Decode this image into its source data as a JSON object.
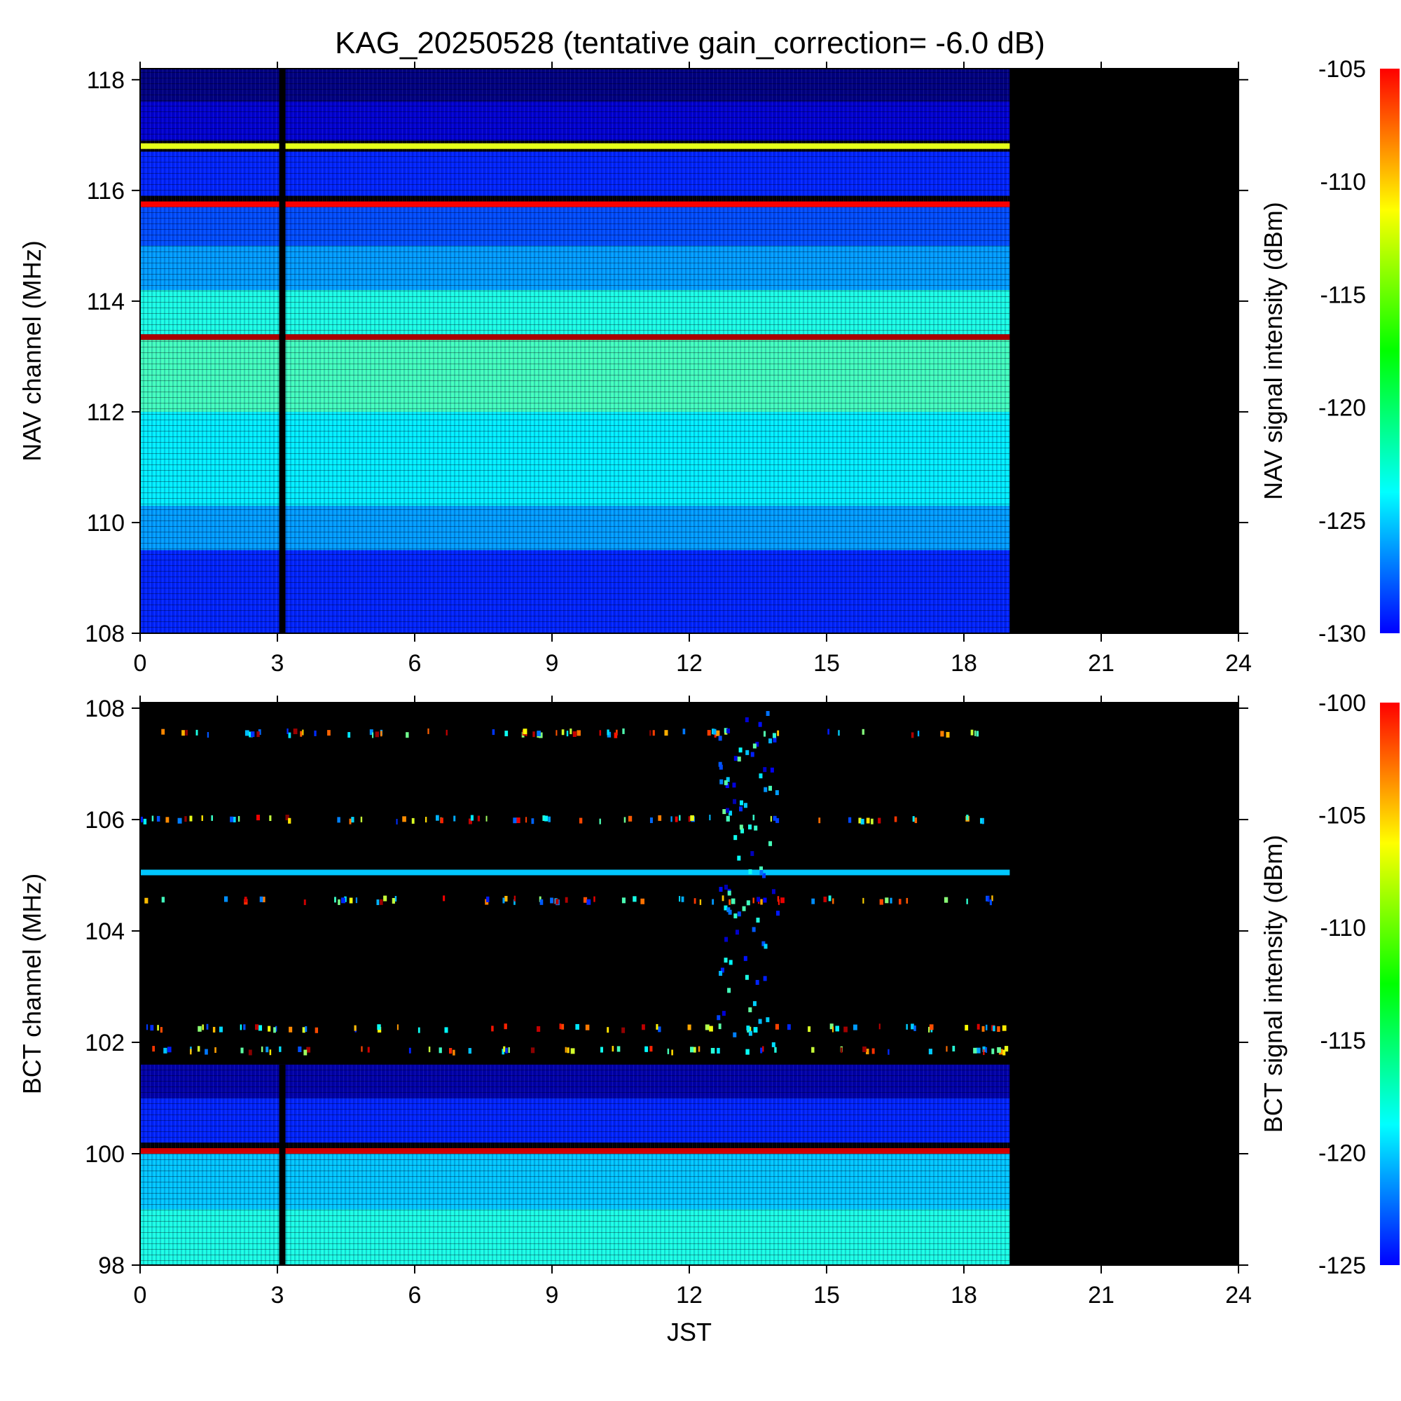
{
  "title": "KAG_20250528 (tentative gain_correction= -6.0 dB)",
  "chart_data": [
    {
      "name": "nav",
      "type": "heatmap",
      "xlabel": "",
      "ylabel": "NAV channel (MHz)",
      "xlim": [
        0,
        24
      ],
      "ylim": [
        108,
        118.2
      ],
      "xticks": [
        "0",
        "3",
        "6",
        "9",
        "12",
        "15",
        "18",
        "21",
        "24"
      ],
      "yticks": [
        "108",
        "110",
        "112",
        "114",
        "116",
        "118"
      ],
      "data_end_hour": 19,
      "gap_hour": 3.1,
      "colorbar": {
        "label": "NAV signal intensity (dBm)",
        "range": [
          -130,
          -105
        ],
        "ticks": [
          "-105",
          "-110",
          "-115",
          "-120",
          "-125",
          "-130"
        ]
      },
      "bands": [
        {
          "from": 117.6,
          "to": 118.2,
          "level_dbm": -130
        },
        {
          "from": 116.9,
          "to": 117.6,
          "level_dbm": -128
        },
        {
          "from": 116.75,
          "to": 116.85,
          "level_dbm": -115
        },
        {
          "from": 115.9,
          "to": 116.7,
          "level_dbm": -126
        },
        {
          "from": 115.7,
          "to": 115.8,
          "level_dbm": -108
        },
        {
          "from": 115.0,
          "to": 115.7,
          "level_dbm": -125
        },
        {
          "from": 114.2,
          "to": 115.0,
          "level_dbm": -123
        },
        {
          "from": 113.4,
          "to": 114.2,
          "level_dbm": -120
        },
        {
          "from": 113.3,
          "to": 113.4,
          "level_dbm": -106
        },
        {
          "from": 112.0,
          "to": 113.3,
          "level_dbm": -119
        },
        {
          "from": 110.3,
          "to": 112.0,
          "level_dbm": -121
        },
        {
          "from": 109.5,
          "to": 110.3,
          "level_dbm": -123
        },
        {
          "from": 108.0,
          "to": 109.5,
          "level_dbm": -126
        }
      ]
    },
    {
      "name": "bct",
      "type": "heatmap",
      "xlabel": "JST",
      "ylabel": "BCT channel (MHz)",
      "xlim": [
        0,
        24
      ],
      "ylim": [
        98,
        108.1
      ],
      "xticks": [
        "0",
        "3",
        "6",
        "9",
        "12",
        "15",
        "18",
        "21",
        "24"
      ],
      "yticks": [
        "98",
        "100",
        "102",
        "104",
        "106",
        "108"
      ],
      "data_end_hour": 19,
      "gap_hour": 3.1,
      "colorbar": {
        "label": "BCT signal intensity (dBm)",
        "range": [
          -125,
          -100
        ],
        "ticks": [
          "-100",
          "-105",
          "-110",
          "-115",
          "-120",
          "-125"
        ]
      },
      "bands": [
        {
          "from": 105.0,
          "to": 105.1,
          "level_dbm": -117
        },
        {
          "from": 101.0,
          "to": 101.6,
          "level_dbm": -124
        },
        {
          "from": 100.2,
          "to": 101.0,
          "level_dbm": -121
        },
        {
          "from": 100.0,
          "to": 100.1,
          "level_dbm": -102
        },
        {
          "from": 99.0,
          "to": 100.0,
          "level_dbm": -117
        },
        {
          "from": 98.0,
          "to": 99.0,
          "level_dbm": -115
        }
      ]
    }
  ]
}
